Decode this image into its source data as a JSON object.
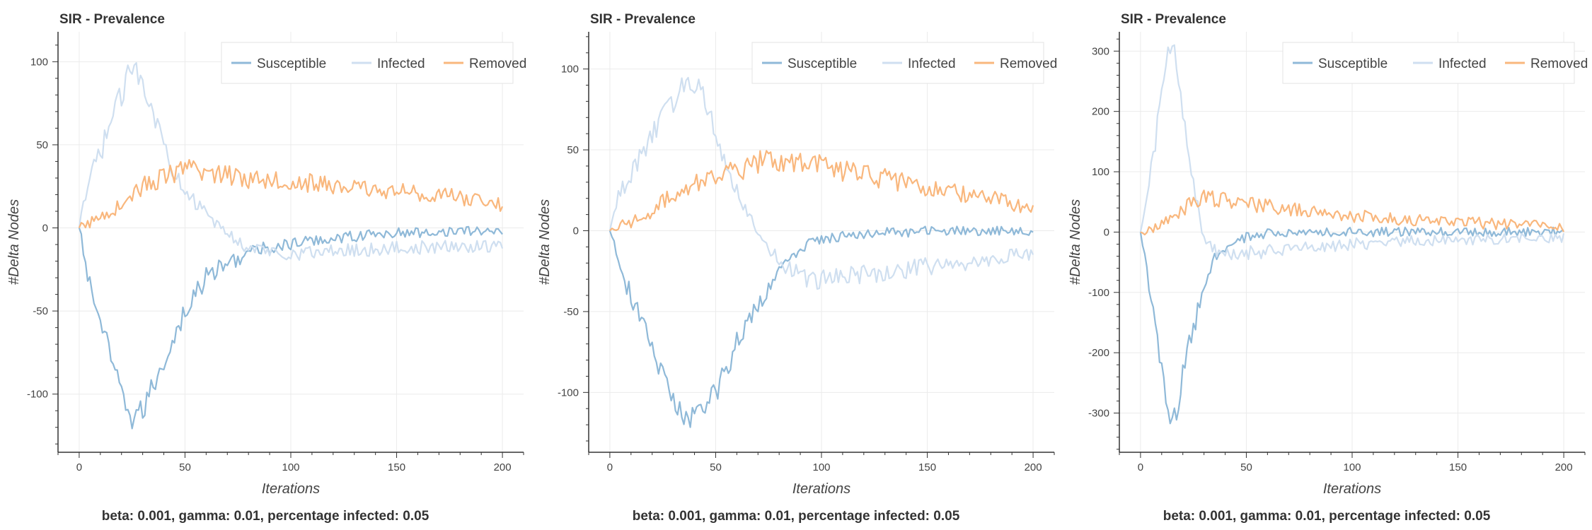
{
  "colors": {
    "susceptible": "#8fb9d8",
    "infected": "#cfdff0",
    "removed": "#f9b77d",
    "grid": "#ebebeb",
    "axis": "#333333"
  },
  "chart_data": [
    {
      "type": "line",
      "title": "SIR - Prevalence",
      "xlabel": "Iterations",
      "ylabel": "#Delta Nodes",
      "caption": "beta: 0.001, gamma: 0.01, percentage infected: 0.05",
      "xlim": [
        -10,
        210
      ],
      "ylim": [
        -135,
        118
      ],
      "xticks": [
        0,
        50,
        100,
        150,
        200
      ],
      "yticks": [
        -100,
        -50,
        0,
        50,
        100
      ],
      "yminor_step": 10,
      "grid": true,
      "legend": "top-right",
      "series": [
        {
          "name": "Susceptible",
          "key": "susceptible",
          "points": [
            [
              0,
              0
            ],
            [
              5,
              -35
            ],
            [
              10,
              -55
            ],
            [
              15,
              -80
            ],
            [
              20,
              -100
            ],
            [
              25,
              -115
            ],
            [
              30,
              -110
            ],
            [
              35,
              -95
            ],
            [
              40,
              -80
            ],
            [
              45,
              -65
            ],
            [
              50,
              -50
            ],
            [
              55,
              -40
            ],
            [
              60,
              -30
            ],
            [
              65,
              -25
            ],
            [
              70,
              -22
            ],
            [
              75,
              -18
            ],
            [
              80,
              -15
            ],
            [
              90,
              -12
            ],
            [
              100,
              -10
            ],
            [
              110,
              -8
            ],
            [
              120,
              -6
            ],
            [
              130,
              -5
            ],
            [
              140,
              -4
            ],
            [
              150,
              -3
            ],
            [
              160,
              -3
            ],
            [
              170,
              -2
            ],
            [
              180,
              -2
            ],
            [
              190,
              -2
            ],
            [
              200,
              -1
            ]
          ]
        },
        {
          "name": "Infected",
          "key": "infected",
          "points": [
            [
              0,
              0
            ],
            [
              5,
              30
            ],
            [
              10,
              45
            ],
            [
              15,
              65
            ],
            [
              20,
              80
            ],
            [
              25,
              98
            ],
            [
              30,
              90
            ],
            [
              35,
              70
            ],
            [
              40,
              50
            ],
            [
              45,
              35
            ],
            [
              50,
              25
            ],
            [
              55,
              15
            ],
            [
              60,
              8
            ],
            [
              65,
              2
            ],
            [
              70,
              -3
            ],
            [
              75,
              -8
            ],
            [
              80,
              -12
            ],
            [
              90,
              -14
            ],
            [
              100,
              -15
            ],
            [
              110,
              -15
            ],
            [
              120,
              -14
            ],
            [
              130,
              -13
            ],
            [
              140,
              -13
            ],
            [
              150,
              -12
            ],
            [
              160,
              -12
            ],
            [
              170,
              -12
            ],
            [
              180,
              -11
            ],
            [
              190,
              -11
            ],
            [
              200,
              -10
            ]
          ]
        },
        {
          "name": "Removed",
          "key": "removed",
          "points": [
            [
              0,
              0
            ],
            [
              5,
              3
            ],
            [
              10,
              7
            ],
            [
              15,
              10
            ],
            [
              20,
              14
            ],
            [
              25,
              20
            ],
            [
              30,
              25
            ],
            [
              35,
              28
            ],
            [
              40,
              30
            ],
            [
              45,
              33
            ],
            [
              50,
              34
            ],
            [
              55,
              35
            ],
            [
              60,
              33
            ],
            [
              65,
              33
            ],
            [
              70,
              32
            ],
            [
              80,
              30
            ],
            [
              90,
              30
            ],
            [
              100,
              28
            ],
            [
              110,
              27
            ],
            [
              120,
              25
            ],
            [
              130,
              24
            ],
            [
              140,
              23
            ],
            [
              150,
              22
            ],
            [
              160,
              21
            ],
            [
              170,
              20
            ],
            [
              180,
              18
            ],
            [
              190,
              16
            ],
            [
              200,
              14
            ]
          ]
        }
      ]
    },
    {
      "type": "line",
      "title": "SIR - Prevalence",
      "xlabel": "Iterations",
      "ylabel": "#Delta Nodes",
      "caption": "beta: 0.001, gamma: 0.01, percentage infected: 0.05",
      "xlim": [
        -10,
        210
      ],
      "ylim": [
        -137,
        123
      ],
      "xticks": [
        0,
        50,
        100,
        150,
        200
      ],
      "yticks": [
        -100,
        -50,
        0,
        50,
        100
      ],
      "yminor_step": 10,
      "grid": true,
      "legend": "top-right",
      "series": [
        {
          "name": "Susceptible",
          "key": "susceptible",
          "points": [
            [
              0,
              0
            ],
            [
              5,
              -25
            ],
            [
              10,
              -40
            ],
            [
              15,
              -55
            ],
            [
              20,
              -75
            ],
            [
              25,
              -90
            ],
            [
              30,
              -105
            ],
            [
              35,
              -115
            ],
            [
              40,
              -115
            ],
            [
              45,
              -110
            ],
            [
              50,
              -100
            ],
            [
              55,
              -85
            ],
            [
              60,
              -70
            ],
            [
              65,
              -55
            ],
            [
              70,
              -45
            ],
            [
              75,
              -35
            ],
            [
              80,
              -25
            ],
            [
              85,
              -18
            ],
            [
              90,
              -12
            ],
            [
              95,
              -8
            ],
            [
              100,
              -5
            ],
            [
              110,
              -3
            ],
            [
              120,
              -2
            ],
            [
              130,
              -1
            ],
            [
              140,
              -1
            ],
            [
              150,
              0
            ],
            [
              160,
              0
            ],
            [
              170,
              0
            ],
            [
              180,
              0
            ],
            [
              190,
              0
            ],
            [
              200,
              0
            ]
          ]
        },
        {
          "name": "Infected",
          "key": "infected",
          "points": [
            [
              0,
              0
            ],
            [
              5,
              25
            ],
            [
              10,
              35
            ],
            [
              15,
              48
            ],
            [
              20,
              60
            ],
            [
              25,
              70
            ],
            [
              30,
              80
            ],
            [
              35,
              90
            ],
            [
              40,
              92
            ],
            [
              45,
              80
            ],
            [
              50,
              60
            ],
            [
              55,
              42
            ],
            [
              60,
              25
            ],
            [
              65,
              12
            ],
            [
              70,
              0
            ],
            [
              75,
              -10
            ],
            [
              80,
              -20
            ],
            [
              85,
              -25
            ],
            [
              90,
              -28
            ],
            [
              95,
              -30
            ],
            [
              100,
              -30
            ],
            [
              110,
              -28
            ],
            [
              120,
              -27
            ],
            [
              130,
              -26
            ],
            [
              140,
              -24
            ],
            [
              150,
              -22
            ],
            [
              160,
              -21
            ],
            [
              170,
              -20
            ],
            [
              180,
              -18
            ],
            [
              190,
              -16
            ],
            [
              200,
              -15
            ]
          ]
        },
        {
          "name": "Removed",
          "key": "removed",
          "points": [
            [
              0,
              0
            ],
            [
              5,
              3
            ],
            [
              10,
              5
            ],
            [
              15,
              8
            ],
            [
              20,
              12
            ],
            [
              25,
              18
            ],
            [
              30,
              22
            ],
            [
              35,
              26
            ],
            [
              40,
              30
            ],
            [
              45,
              32
            ],
            [
              50,
              33
            ],
            [
              55,
              35
            ],
            [
              60,
              37
            ],
            [
              65,
              40
            ],
            [
              70,
              42
            ],
            [
              80,
              43
            ],
            [
              90,
              42
            ],
            [
              100,
              40
            ],
            [
              110,
              37
            ],
            [
              120,
              35
            ],
            [
              130,
              32
            ],
            [
              140,
              30
            ],
            [
              150,
              27
            ],
            [
              160,
              25
            ],
            [
              170,
              22
            ],
            [
              180,
              20
            ],
            [
              190,
              17
            ],
            [
              200,
              14
            ]
          ]
        }
      ]
    },
    {
      "type": "line",
      "title": "SIR - Prevalence",
      "xlabel": "Iterations",
      "ylabel": "#Delta Nodes",
      "caption": "beta: 0.001, gamma: 0.01, percentage infected: 0.05",
      "xlim": [
        -10,
        210
      ],
      "ylim": [
        -365,
        332
      ],
      "xticks": [
        0,
        50,
        100,
        150,
        200
      ],
      "yticks": [
        -300,
        -200,
        -100,
        0,
        100,
        200,
        300
      ],
      "yminor_step": 20,
      "grid": true,
      "legend": "top-right",
      "series": [
        {
          "name": "Susceptible",
          "key": "susceptible",
          "points": [
            [
              0,
              0
            ],
            [
              3,
              -60
            ],
            [
              6,
              -130
            ],
            [
              9,
              -210
            ],
            [
              12,
              -280
            ],
            [
              14,
              -320
            ],
            [
              16,
              -310
            ],
            [
              18,
              -280
            ],
            [
              20,
              -240
            ],
            [
              22,
              -200
            ],
            [
              25,
              -160
            ],
            [
              28,
              -120
            ],
            [
              30,
              -90
            ],
            [
              33,
              -60
            ],
            [
              36,
              -40
            ],
            [
              40,
              -25
            ],
            [
              45,
              -15
            ],
            [
              50,
              -8
            ],
            [
              55,
              -5
            ],
            [
              60,
              -3
            ],
            [
              70,
              -2
            ],
            [
              80,
              -1
            ],
            [
              90,
              -1
            ],
            [
              100,
              0
            ],
            [
              120,
              0
            ],
            [
              140,
              0
            ],
            [
              160,
              0
            ],
            [
              180,
              0
            ],
            [
              200,
              0
            ]
          ]
        },
        {
          "name": "Infected",
          "key": "infected",
          "points": [
            [
              0,
              0
            ],
            [
              3,
              60
            ],
            [
              6,
              120
            ],
            [
              9,
              200
            ],
            [
              12,
              270
            ],
            [
              14,
              310
            ],
            [
              16,
              300
            ],
            [
              18,
              260
            ],
            [
              20,
              200
            ],
            [
              22,
              150
            ],
            [
              25,
              80
            ],
            [
              28,
              20
            ],
            [
              30,
              -10
            ],
            [
              33,
              -25
            ],
            [
              36,
              -35
            ],
            [
              40,
              -40
            ],
            [
              45,
              -38
            ],
            [
              50,
              -35
            ],
            [
              60,
              -32
            ],
            [
              70,
              -28
            ],
            [
              80,
              -25
            ],
            [
              90,
              -22
            ],
            [
              100,
              -20
            ],
            [
              120,
              -17
            ],
            [
              140,
              -14
            ],
            [
              160,
              -12
            ],
            [
              180,
              -10
            ],
            [
              200,
              -8
            ]
          ]
        },
        {
          "name": "Removed",
          "key": "removed",
          "points": [
            [
              0,
              0
            ],
            [
              3,
              3
            ],
            [
              6,
              8
            ],
            [
              9,
              12
            ],
            [
              12,
              18
            ],
            [
              15,
              25
            ],
            [
              18,
              32
            ],
            [
              21,
              40
            ],
            [
              24,
              48
            ],
            [
              27,
              55
            ],
            [
              30,
              58
            ],
            [
              33,
              57
            ],
            [
              36,
              55
            ],
            [
              40,
              52
            ],
            [
              45,
              50
            ],
            [
              50,
              48
            ],
            [
              60,
              42
            ],
            [
              70,
              38
            ],
            [
              80,
              34
            ],
            [
              90,
              30
            ],
            [
              100,
              27
            ],
            [
              120,
              22
            ],
            [
              140,
              18
            ],
            [
              160,
              15
            ],
            [
              180,
              12
            ],
            [
              200,
              9
            ]
          ]
        }
      ]
    }
  ]
}
